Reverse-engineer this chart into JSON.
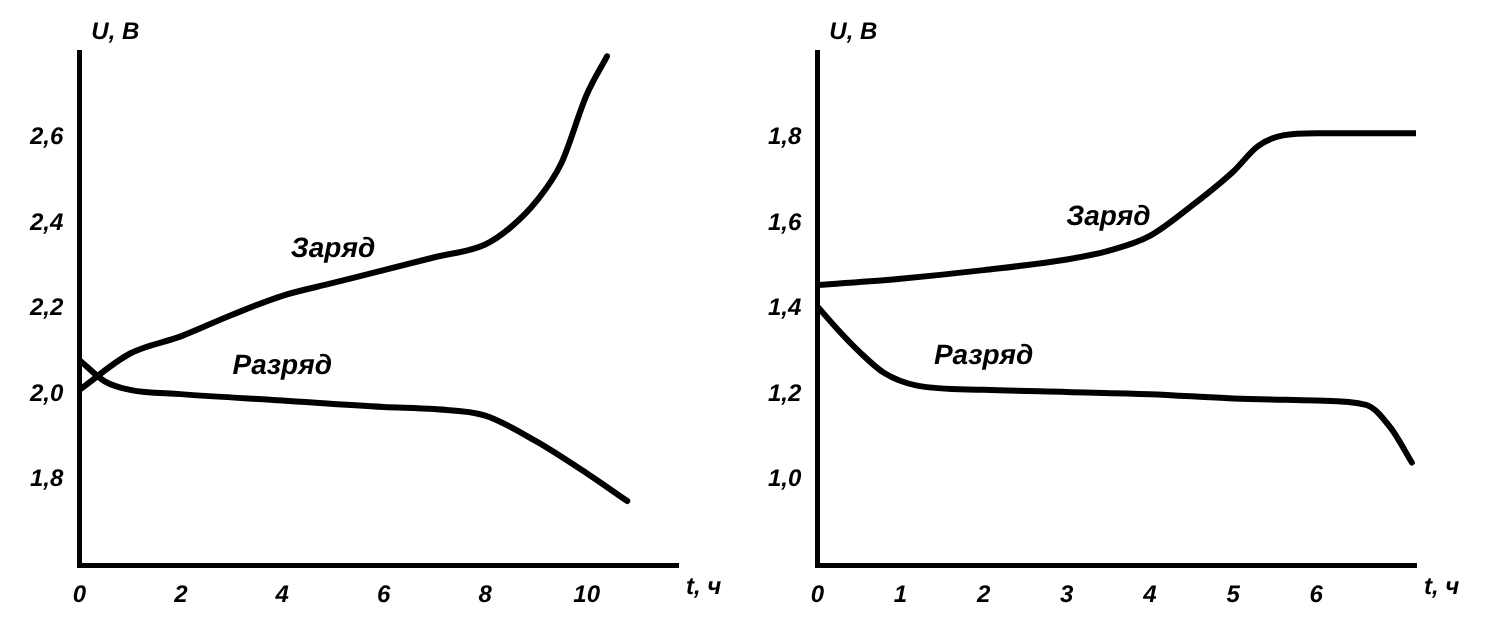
{
  "chart_data": [
    {
      "type": "line",
      "xlabel": "t, ч",
      "ylabel": "U, В",
      "xlim": [
        0,
        11.8
      ],
      "xticks": [
        0,
        2,
        4,
        6,
        8,
        10
      ],
      "ylim": [
        1.6,
        2.8
      ],
      "yticks": [
        {
          "value": 1.8,
          "label": "1,8"
        },
        {
          "value": 2.0,
          "label": "2,0"
        },
        {
          "value": 2.2,
          "label": "2,2"
        },
        {
          "value": 2.4,
          "label": "2,4"
        },
        {
          "value": 2.6,
          "label": "2,6"
        }
      ],
      "grid": false,
      "legend": false,
      "marker": "none",
      "line_style": "solid",
      "series": [
        {
          "name": "Заряд",
          "color": "#000000",
          "x": [
            0,
            1,
            2,
            3,
            4,
            5,
            6,
            7,
            8,
            8.5,
            9,
            9.5,
            10,
            10.4
          ],
          "values": [
            2.01,
            2.095,
            2.135,
            2.185,
            2.23,
            2.26,
            2.29,
            2.32,
            2.35,
            2.39,
            2.45,
            2.54,
            2.7,
            2.79
          ]
        },
        {
          "name": "Разряд",
          "color": "#000000",
          "x": [
            0,
            0.5,
            1,
            2,
            4,
            6,
            7,
            8,
            9,
            10,
            10.8
          ],
          "values": [
            2.08,
            2.03,
            2.01,
            2.0,
            1.985,
            1.97,
            1.965,
            1.95,
            1.89,
            1.815,
            1.75
          ]
        }
      ]
    },
    {
      "type": "line",
      "xlabel": "t, ч",
      "ylabel": "U, В",
      "xlim": [
        0,
        7.2
      ],
      "xticks": [
        0,
        1,
        2,
        3,
        4,
        5,
        6
      ],
      "ylim": [
        0.8,
        2.0
      ],
      "yticks": [
        {
          "value": 1.0,
          "label": "1,0"
        },
        {
          "value": 1.2,
          "label": "1,2"
        },
        {
          "value": 1.4,
          "label": "1,4"
        },
        {
          "value": 1.6,
          "label": "1,6"
        },
        {
          "value": 1.8,
          "label": "1,8"
        }
      ],
      "grid": false,
      "legend": false,
      "marker": "none",
      "line_style": "solid",
      "series": [
        {
          "name": "Заряд",
          "color": "#000000",
          "x": [
            0,
            1,
            2,
            3,
            3.5,
            4,
            4.5,
            5,
            5.3,
            5.6,
            6,
            7.2
          ],
          "values": [
            1.455,
            1.47,
            1.49,
            1.515,
            1.535,
            1.57,
            1.64,
            1.72,
            1.78,
            1.805,
            1.81,
            1.81
          ]
        },
        {
          "name": "Разряд",
          "color": "#000000",
          "x": [
            0,
            0.25,
            0.5,
            0.8,
            1.2,
            2,
            3,
            4,
            5,
            6,
            6.6,
            6.9,
            7.15
          ],
          "values": [
            1.405,
            1.35,
            1.3,
            1.25,
            1.22,
            1.21,
            1.205,
            1.2,
            1.19,
            1.185,
            1.175,
            1.12,
            1.04
          ]
        }
      ]
    }
  ]
}
